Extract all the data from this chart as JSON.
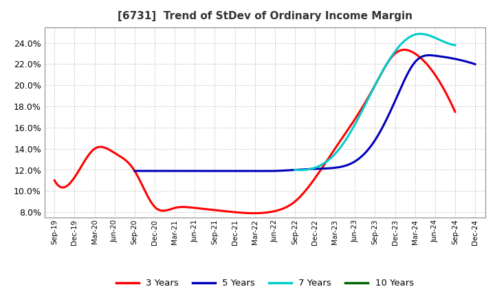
{
  "title": "[6731]  Trend of StDev of Ordinary Income Margin",
  "ylim": [
    0.075,
    0.255
  ],
  "yticks": [
    0.08,
    0.1,
    0.12,
    0.14,
    0.16,
    0.18,
    0.2,
    0.22,
    0.24
  ],
  "ytick_labels": [
    "8.0%",
    "10.0%",
    "12.0%",
    "14.0%",
    "16.0%",
    "18.0%",
    "20.0%",
    "22.0%",
    "24.0%"
  ],
  "x_labels": [
    "Sep-19",
    "Dec-19",
    "Mar-20",
    "Jun-20",
    "Sep-20",
    "Dec-20",
    "Mar-21",
    "Jun-21",
    "Sep-21",
    "Dec-21",
    "Mar-22",
    "Jun-22",
    "Sep-22",
    "Dec-22",
    "Mar-23",
    "Jun-23",
    "Sep-23",
    "Dec-23",
    "Mar-24",
    "Jun-24",
    "Sep-24",
    "Dec-24"
  ],
  "series": {
    "3 Years": {
      "color": "#FF0000",
      "data_x": [
        0,
        1,
        2,
        3,
        4,
        5,
        6,
        7,
        8,
        9,
        10,
        11,
        12,
        13,
        14,
        15,
        16,
        17,
        18,
        19,
        20,
        21
      ],
      "data_y": [
        0.11,
        0.113,
        0.14,
        0.136,
        0.119,
        0.085,
        0.084,
        0.084,
        0.082,
        0.08,
        0.079,
        0.081,
        0.09,
        0.112,
        0.14,
        0.168,
        0.2,
        0.23,
        0.23,
        0.21,
        0.175,
        null
      ]
    },
    "5 Years": {
      "color": "#0000BB",
      "data_x": [
        4,
        5,
        6,
        7,
        8,
        9,
        10,
        11,
        12,
        13,
        14,
        15,
        16,
        17,
        18,
        19,
        20,
        21
      ],
      "data_y": [
        0.119,
        0.119,
        0.119,
        0.119,
        0.119,
        0.119,
        0.119,
        0.119,
        0.12,
        0.121,
        0.122,
        0.128,
        0.148,
        0.185,
        0.222,
        0.228,
        0.225,
        0.22
      ]
    },
    "7 Years": {
      "color": "#00CCCC",
      "data_x": [
        12,
        13,
        14,
        15,
        16,
        17,
        18,
        19,
        20
      ],
      "data_y": [
        0.12,
        0.122,
        0.135,
        0.163,
        0.2,
        0.232,
        0.248,
        0.245,
        0.238
      ]
    },
    "10 Years": {
      "color": "#006600",
      "data_x": [],
      "data_y": []
    }
  },
  "legend_entries": [
    "3 Years",
    "5 Years",
    "7 Years",
    "10 Years"
  ],
  "legend_colors": [
    "#FF0000",
    "#0000BB",
    "#00CCCC",
    "#006600"
  ],
  "background_color": "#FFFFFF",
  "grid_color": "#999999"
}
